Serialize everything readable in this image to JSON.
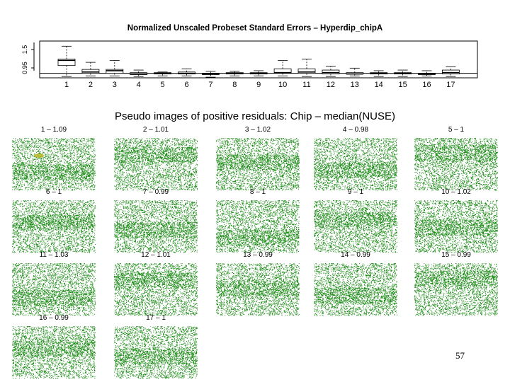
{
  "boxplot": {
    "title": "Normalized Unscaled Probeset Standard Errors –  Hyperdip_chipA",
    "y_tick_labels": [
      "1.5",
      "0.95"
    ],
    "chart_data": {
      "type": "boxplot",
      "title": "Normalized Unscaled Probeset Standard Errors –  Hyperdip_chipA",
      "categories": [
        "1",
        "2",
        "3",
        "4",
        "5",
        "6",
        "7",
        "8",
        "9",
        "10",
        "11",
        "12",
        "13",
        "14",
        "15",
        "16",
        "17"
      ],
      "ylim": [
        0.93,
        1.5
      ],
      "reference_line": 1.0,
      "boxes": [
        {
          "whisker_low": 0.95,
          "q1": 1.12,
          "median": 1.2,
          "q3": 1.22,
          "whisker_high": 1.42
        },
        {
          "whisker_low": 0.96,
          "q1": 1.0,
          "median": 1.02,
          "q3": 1.06,
          "whisker_high": 1.17
        },
        {
          "whisker_low": 0.96,
          "q1": 1.0,
          "median": 1.04,
          "q3": 1.06,
          "whisker_high": 1.2
        },
        {
          "whisker_low": 0.95,
          "q1": 0.98,
          "median": 0.99,
          "q3": 1.01,
          "whisker_high": 1.05
        },
        {
          "whisker_low": 0.96,
          "q1": 0.99,
          "median": 1.0,
          "q3": 1.01,
          "whisker_high": 1.02
        },
        {
          "whisker_low": 0.96,
          "q1": 0.99,
          "median": 1.0,
          "q3": 1.02,
          "whisker_high": 1.07
        },
        {
          "whisker_low": 0.94,
          "q1": 0.98,
          "median": 0.99,
          "q3": 1.0,
          "whisker_high": 1.03
        },
        {
          "whisker_low": 0.96,
          "q1": 0.99,
          "median": 1.0,
          "q3": 1.01,
          "whisker_high": 1.03
        },
        {
          "whisker_low": 0.96,
          "q1": 0.99,
          "median": 1.0,
          "q3": 1.01,
          "whisker_high": 1.04
        },
        {
          "whisker_low": 0.96,
          "q1": 1.0,
          "median": 1.01,
          "q3": 1.07,
          "whisker_high": 1.2
        },
        {
          "whisker_low": 0.95,
          "q1": 1.0,
          "median": 1.02,
          "q3": 1.07,
          "whisker_high": 1.22
        },
        {
          "whisker_low": 0.95,
          "q1": 0.99,
          "median": 1.01,
          "q3": 1.05,
          "whisker_high": 1.11
        },
        {
          "whisker_low": 0.96,
          "q1": 0.99,
          "median": 0.99,
          "q3": 1.01,
          "whisker_high": 1.08
        },
        {
          "whisker_low": 0.95,
          "q1": 0.99,
          "median": 1.0,
          "q3": 1.01,
          "whisker_high": 1.04
        },
        {
          "whisker_low": 0.95,
          "q1": 0.99,
          "median": 1.0,
          "q3": 1.01,
          "whisker_high": 1.05
        },
        {
          "whisker_low": 0.96,
          "q1": 0.98,
          "median": 0.99,
          "q3": 1.0,
          "whisker_high": 1.04
        },
        {
          "whisker_low": 0.95,
          "q1": 0.99,
          "median": 1.01,
          "q3": 1.05,
          "whisker_high": 1.1
        }
      ]
    }
  },
  "pseudo_images": {
    "title": "Pseudo images of positive residuals: Chip – median(NUSE)",
    "dot_color": "#1a8a14",
    "highlight_color": "#b8b21c",
    "panels": [
      {
        "label": "1 – 1.09"
      },
      {
        "label": "2 – 1.01"
      },
      {
        "label": "3 – 1.02"
      },
      {
        "label": "4 – 0.98"
      },
      {
        "label": "5 – 1"
      },
      {
        "label": "6 – 1"
      },
      {
        "label": "7 – 0.99"
      },
      {
        "label": "8 – 1"
      },
      {
        "label": "9 – 1"
      },
      {
        "label": "10 – 1.02"
      },
      {
        "label": "11 – 1.03"
      },
      {
        "label": "12 – 1.01"
      },
      {
        "label": "13 – 0.99"
      },
      {
        "label": "14 – 0.99"
      },
      {
        "label": "15 – 0.99"
      },
      {
        "label": "16 – 0.99"
      },
      {
        "label": "17 – 1"
      }
    ]
  },
  "page_number": "57"
}
